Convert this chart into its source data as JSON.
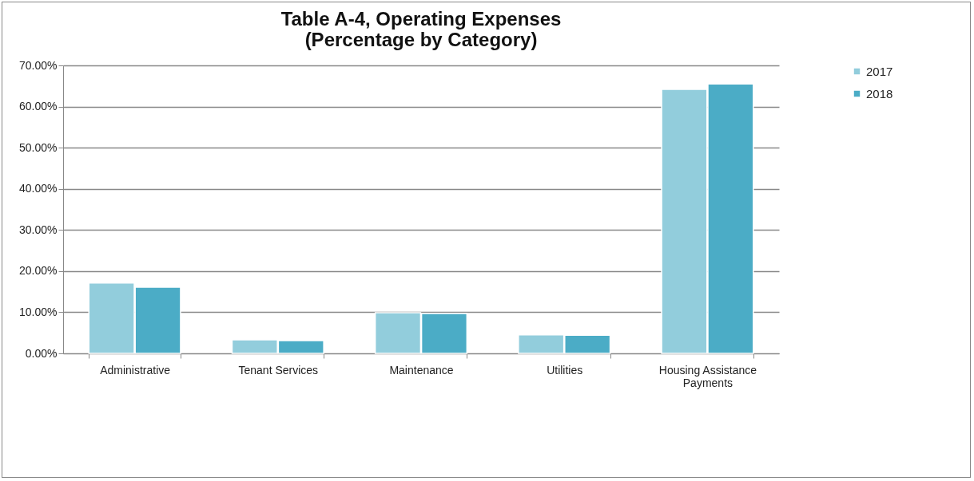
{
  "chart_data": {
    "type": "bar",
    "title": "Table A-4, Operating Expenses\n(Percentage by Category)",
    "categories": [
      "Administrative",
      "Tenant Services",
      "Maintenance",
      "Utilities",
      "Housing Assistance Payments"
    ],
    "series": [
      {
        "name": "2017",
        "color": "#92cddc",
        "values": [
          17.1,
          3.3,
          9.9,
          4.5,
          64.2
        ]
      },
      {
        "name": "2018",
        "color": "#4bacc6",
        "values": [
          16.1,
          3.1,
          9.7,
          4.4,
          65.5
        ]
      }
    ],
    "ylim": [
      0,
      70
    ],
    "yticks": [
      {
        "value": 0,
        "label": "0.00%"
      },
      {
        "value": 10,
        "label": "10.00%"
      },
      {
        "value": 20,
        "label": "20.00%"
      },
      {
        "value": 30,
        "label": "30.00%"
      },
      {
        "value": 40,
        "label": "40.00%"
      },
      {
        "value": 50,
        "label": "50.00%"
      },
      {
        "value": 60,
        "label": "60.00%"
      },
      {
        "value": 70,
        "label": "70.00%"
      }
    ],
    "grid": "y",
    "legend": "right"
  }
}
